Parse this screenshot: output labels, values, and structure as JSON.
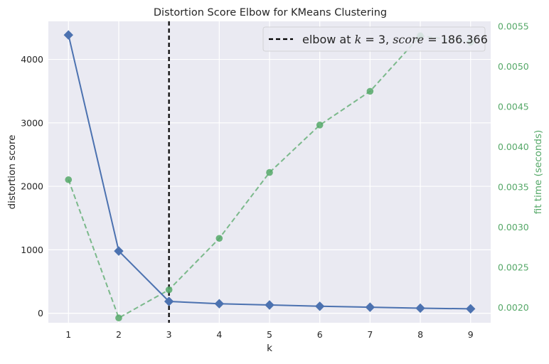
{
  "chart_data": {
    "type": "line",
    "title": "Distortion Score Elbow for KMeans Clustering",
    "xlabel": "k",
    "ylabel": "distortion score",
    "y2label": "fit time (seconds)",
    "x": [
      1,
      2,
      3,
      4,
      5,
      6,
      7,
      8,
      9
    ],
    "xlim": [
      0.6,
      9.4
    ],
    "ylim": [
      -150,
      4600
    ],
    "y2lim": [
      0.00181,
      0.00556
    ],
    "x_ticks": [
      1,
      2,
      3,
      4,
      5,
      6,
      7,
      8,
      9
    ],
    "y_ticks": [
      0,
      1000,
      2000,
      3000,
      4000
    ],
    "y2_ticks": [
      "0.0020",
      "0.0025",
      "0.0030",
      "0.0035",
      "0.0040",
      "0.0045",
      "0.0050",
      "0.0055"
    ],
    "grid": true,
    "legend_position": "top-right",
    "elbow": {
      "k": 3,
      "score": 186.366,
      "legend_prefix": "elbow at ",
      "legend_k_label": "k",
      "legend_eq1": " = 3, ",
      "legend_score_label": "score",
      "legend_eq2": " = 186.366"
    },
    "series": [
      {
        "axis": "left",
        "values": [
          4385,
          980,
          186.366,
          150,
          130,
          110,
          95,
          80,
          70
        ],
        "color": "#4c72b0",
        "marker": "diamond",
        "linestyle": "solid"
      },
      {
        "axis": "right",
        "values": [
          0.00359,
          0.00187,
          0.00222,
          0.00286,
          0.00368,
          0.00427,
          0.00469,
          0.00538,
          0.0053
        ],
        "color": "#55a868",
        "marker": "circle",
        "linestyle": "dashed"
      }
    ]
  },
  "colors": {
    "plot_background": "#eaeaf2",
    "grid": "#ffffff",
    "left_axis_text": "#262626",
    "right_axis_text": "#55a868",
    "elbow_line": "#000000"
  }
}
